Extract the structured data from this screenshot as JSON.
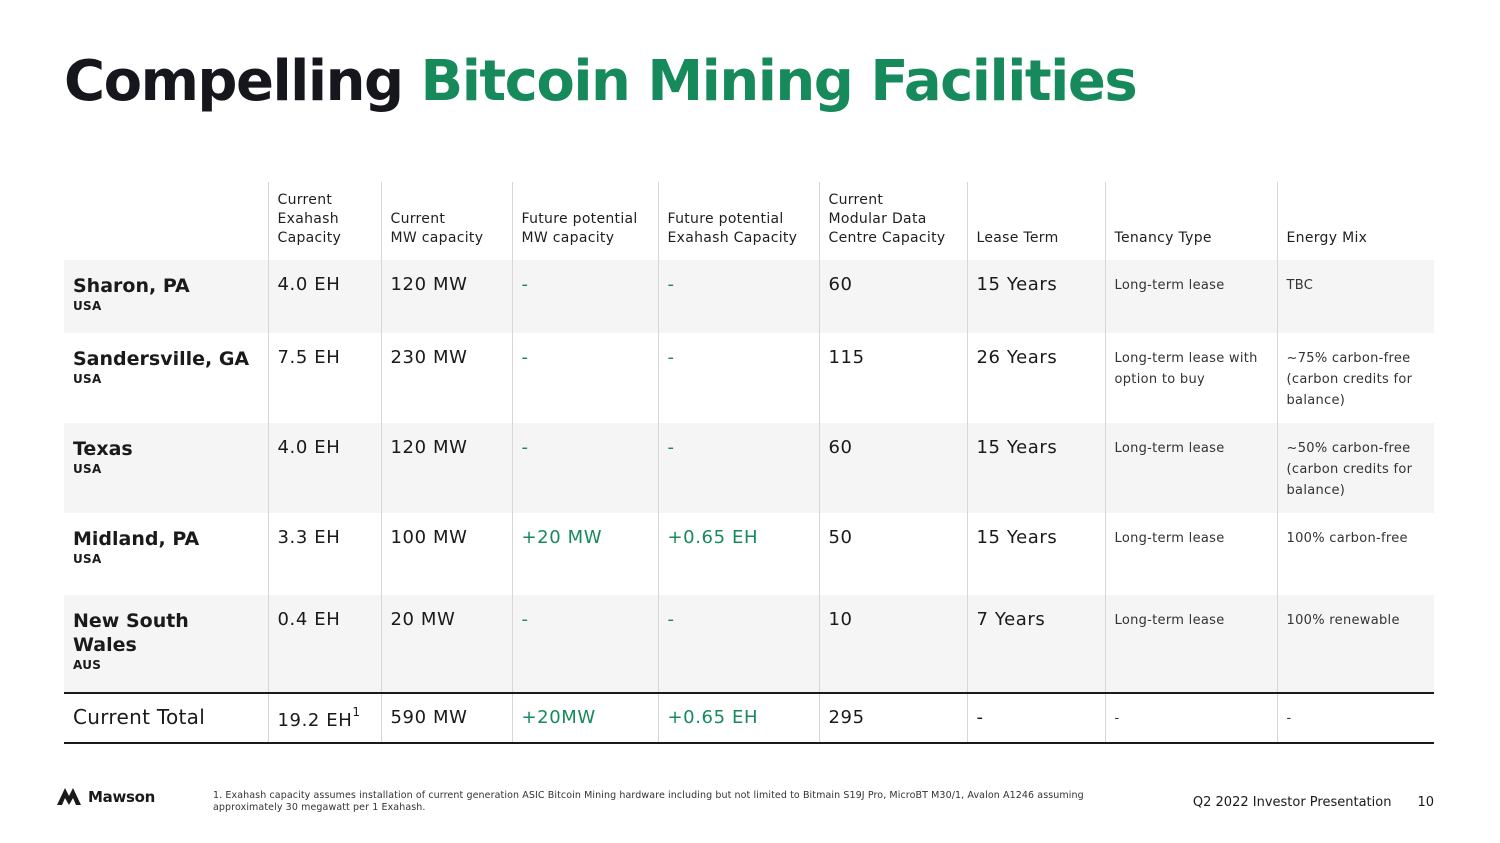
{
  "title": {
    "part1": "Compelling",
    "part2": "Bitcoin Mining Facilities"
  },
  "colors": {
    "accent_green": "#178a5c",
    "dark": "#16161d",
    "row_shade": "#f4f5f4"
  },
  "table": {
    "headers": [
      "",
      "Current\nExahash\nCapacity",
      "Current\nMW capacity",
      "Future potential\nMW capacity",
      "Future potential\nExahash Capacity",
      "Current\nModular Data\nCentre Capacity",
      "Lease Term",
      "Tenancy Type",
      "Energy Mix"
    ],
    "rows": [
      {
        "name": "Sharon, PA",
        "country": "USA",
        "exahash": "4.0 EH",
        "mw": "120 MW",
        "future_mw": "-",
        "future_eh": "-",
        "modular": "60",
        "lease": "15 Years",
        "tenancy": "Long-term lease",
        "energy": "TBC"
      },
      {
        "name": "Sandersville, GA",
        "country": "USA",
        "exahash": "7.5 EH",
        "mw": "230 MW",
        "future_mw": "-",
        "future_eh": "-",
        "modular": "115",
        "lease": "26 Years",
        "tenancy": "Long-term lease with option to buy",
        "energy": "~75% carbon-free (carbon credits for balance)"
      },
      {
        "name": "Texas",
        "country": "USA",
        "exahash": "4.0 EH",
        "mw": "120 MW",
        "future_mw": "-",
        "future_eh": "-",
        "modular": "60",
        "lease": "15 Years",
        "tenancy": "Long-term lease",
        "energy": "~50% carbon-free (carbon credits for balance)"
      },
      {
        "name": "Midland, PA",
        "country": "USA",
        "exahash": "3.3 EH",
        "mw": "100 MW",
        "future_mw": "+20 MW",
        "future_eh": "+0.65 EH",
        "modular": "50",
        "lease": "15 Years",
        "tenancy": "Long-term lease",
        "energy": "100% carbon-free"
      },
      {
        "name": "New South Wales",
        "country": "AUS",
        "exahash": "0.4 EH",
        "mw": "20 MW",
        "future_mw": "-",
        "future_eh": "-",
        "modular": "10",
        "lease": "7 Years",
        "tenancy": "Long-term lease",
        "energy": "100% renewable"
      }
    ],
    "total": {
      "label": "Current Total",
      "exahash": "19.2 EH",
      "exahash_footnote": "1",
      "mw": "590 MW",
      "future_mw": "+20MW",
      "future_eh": "+0.65 EH",
      "modular": "295",
      "lease": "-",
      "tenancy": "-",
      "energy": "-"
    }
  },
  "footer": {
    "logo_text": "Mawson",
    "logo_icon": "mountain-m-icon",
    "footnote": "1. Exahash capacity assumes installation of current generation ASIC Bitcoin Mining hardware including but not limited to Bitmain S19J Pro, MicroBT M30/1, Avalon A1246 assuming approximately 30 megawatt per 1 Exahash.",
    "presentation": "Q2 2022 Investor Presentation",
    "page_number": "10"
  }
}
